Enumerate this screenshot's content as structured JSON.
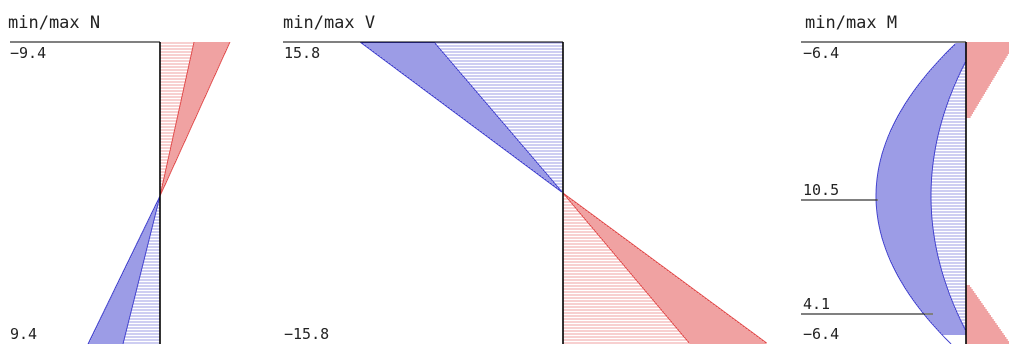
{
  "colors": {
    "negative": "#3a3acc",
    "positive": "#e04545",
    "axis": "#000000",
    "text": "#222222"
  },
  "panels": {
    "n": {
      "title": "min/max N",
      "labels": {
        "top": "−9.4",
        "bottom": "9.4"
      }
    },
    "v": {
      "title": "min/max V",
      "labels": {
        "top": "15.8",
        "bottom": "−15.8"
      }
    },
    "m": {
      "title": "min/max M",
      "labels": {
        "top": "−6.4",
        "mid": "10.5",
        "low": "4.1",
        "bottom": "−6.4"
      }
    }
  }
}
